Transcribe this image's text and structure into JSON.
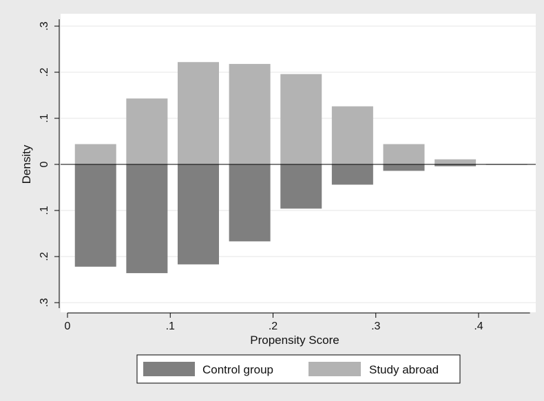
{
  "chart_data": {
    "type": "bar",
    "orientation": "mirrored-histogram",
    "xlabel": "Propensity Score",
    "ylabel": "Density",
    "xlim": [
      0,
      0.45
    ],
    "ylim": [
      -0.3,
      0.3
    ],
    "x_ticks": [
      {
        "value": 0,
        "label": "0"
      },
      {
        "value": 0.1,
        "label": ".1"
      },
      {
        "value": 0.2,
        "label": ".2"
      },
      {
        "value": 0.3,
        "label": ".3"
      },
      {
        "value": 0.4,
        "label": ".4"
      }
    ],
    "y_ticks": [
      {
        "value": -0.3,
        "label": ".3"
      },
      {
        "value": -0.2,
        "label": ".2"
      },
      {
        "value": -0.1,
        "label": ".1"
      },
      {
        "value": 0,
        "label": "0"
      },
      {
        "value": 0.1,
        "label": ".1"
      },
      {
        "value": 0.2,
        "label": ".2"
      },
      {
        "value": 0.3,
        "label": ".3"
      }
    ],
    "bin_width": 0.05,
    "bins_start": [
      0,
      0.05,
      0.1,
      0.15,
      0.2,
      0.25,
      0.3,
      0.35,
      0.4
    ],
    "series": [
      {
        "name": "Control group",
        "color": "#7f7f7f",
        "direction": "down",
        "values": [
          0.222,
          0.236,
          0.217,
          0.167,
          0.096,
          0.044,
          0.014,
          0.004,
          0.001
        ]
      },
      {
        "name": "Study abroad",
        "color": "#b3b3b3",
        "direction": "up",
        "values": [
          0.044,
          0.143,
          0.222,
          0.218,
          0.196,
          0.126,
          0.044,
          0.011,
          0.001
        ]
      }
    ],
    "grid": true,
    "legend": "bottom"
  }
}
